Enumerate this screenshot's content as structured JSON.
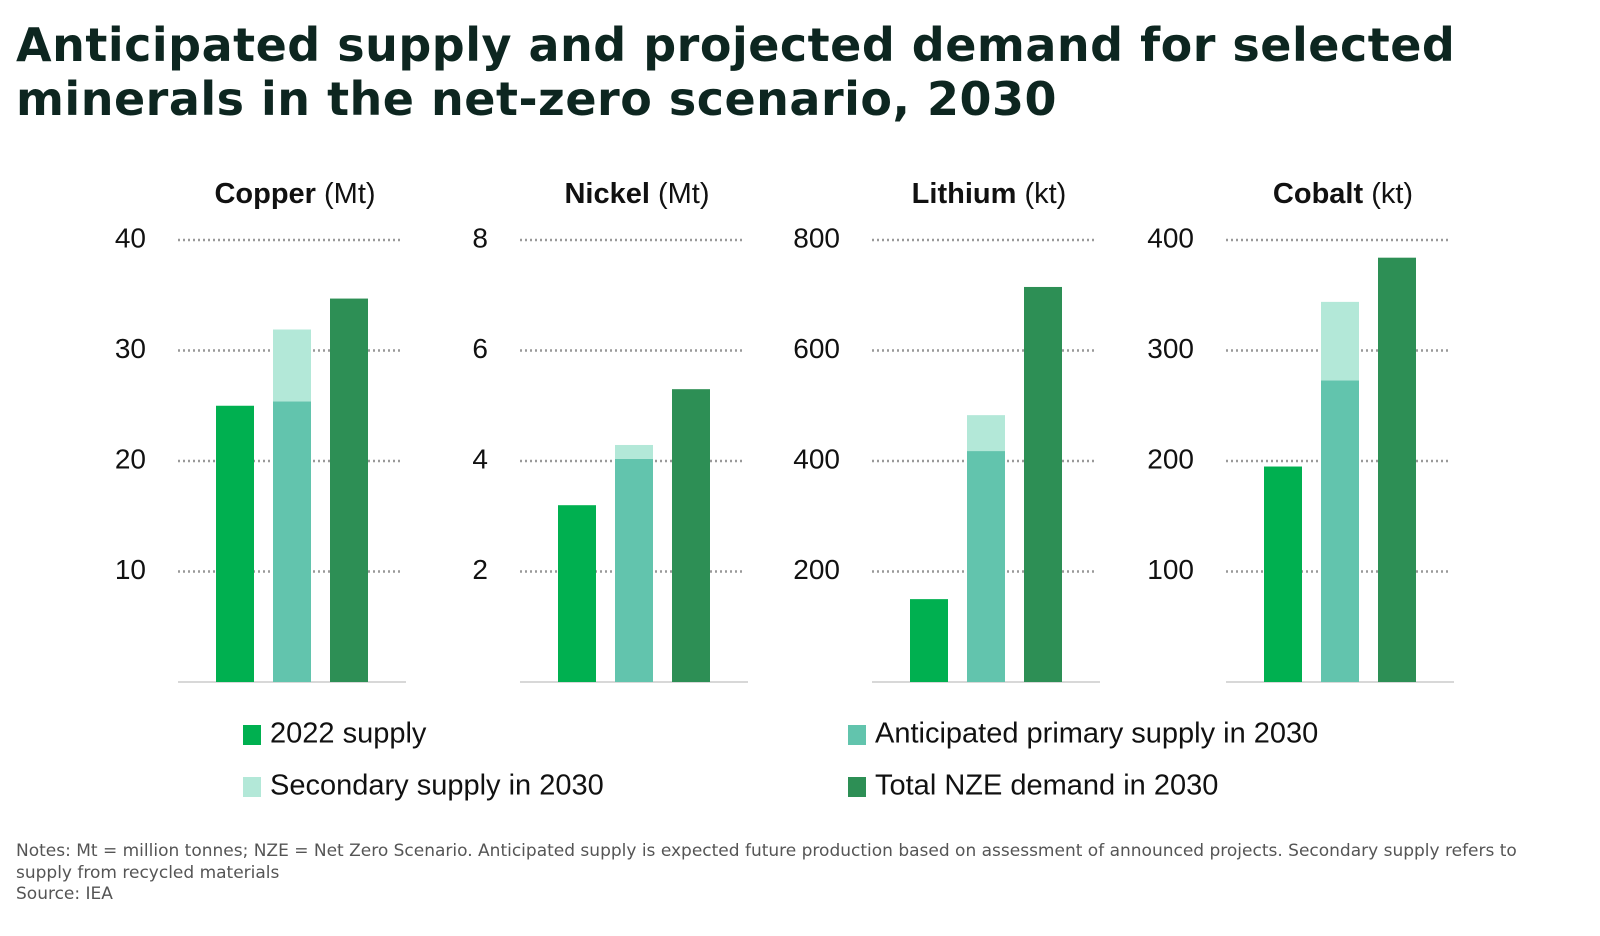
{
  "title": "Anticipated supply and projected demand for selected minerals in the net-zero scenario, 2030",
  "series": [
    {
      "name": "2022 supply",
      "color": "#00b050"
    },
    {
      "name": "Anticipated primary supply in 2030",
      "color": "#62c4ad"
    },
    {
      "name": "Secondary supply in 2030",
      "color": "#b3e8d8"
    },
    {
      "name": "Total NZE demand in 2030",
      "color": "#2d8f55"
    }
  ],
  "chart_data": [
    {
      "type": "bar",
      "title": "Copper",
      "unit": "(Mt)",
      "values": [
        25.0,
        25.4,
        6.5,
        34.7
      ],
      "ylim": [
        0,
        40
      ],
      "yticks": [
        10,
        20,
        30,
        40
      ],
      "grid": true
    },
    {
      "type": "bar",
      "title": "Nickel",
      "unit": "(Mt)",
      "values": [
        3.2,
        4.04,
        0.25,
        5.3
      ],
      "ylim": [
        0,
        8
      ],
      "yticks": [
        2,
        4,
        6,
        8
      ],
      "grid": true
    },
    {
      "type": "bar",
      "title": "Lithium",
      "unit": "(kt)",
      "values": [
        150,
        418,
        65,
        715
      ],
      "ylim": [
        0,
        800
      ],
      "yticks": [
        200,
        400,
        600,
        800
      ],
      "grid": true
    },
    {
      "type": "bar",
      "title": "Cobalt",
      "unit": "(kt)",
      "values": [
        195,
        273,
        71,
        384
      ],
      "ylim": [
        0,
        400
      ],
      "yticks": [
        100,
        200,
        300,
        400
      ],
      "grid": true
    }
  ],
  "notes": "Notes: Mt = million tonnes; NZE = Net Zero Scenario. Anticipated supply is expected future production based on assessment of announced projects. Secondary supply refers to supply from recycled materials",
  "source": "Source: IEA"
}
